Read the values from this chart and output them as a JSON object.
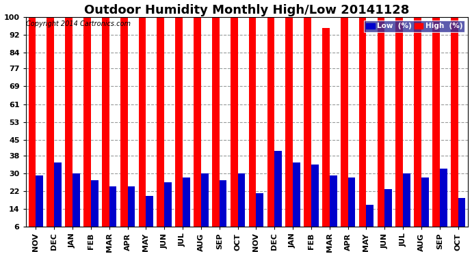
{
  "title": "Outdoor Humidity Monthly High/Low 20141128",
  "copyright": "Copyright 2014 Cartronics.com",
  "categories": [
    "NOV",
    "DEC",
    "JAN",
    "FEB",
    "MAR",
    "APR",
    "MAY",
    "JUN",
    "JUL",
    "AUG",
    "SEP",
    "OCT",
    "NOV",
    "DEC",
    "JAN",
    "FEB",
    "MAR",
    "APR",
    "MAY",
    "JUN",
    "JUL",
    "AUG",
    "SEP",
    "OCT"
  ],
  "high_values": [
    100,
    100,
    100,
    100,
    100,
    100,
    100,
    100,
    100,
    100,
    100,
    100,
    100,
    100,
    100,
    100,
    95,
    100,
    100,
    100,
    100,
    100,
    100,
    100
  ],
  "low_values": [
    29,
    35,
    30,
    27,
    24,
    24,
    20,
    26,
    28,
    30,
    27,
    30,
    21,
    40,
    35,
    34,
    29,
    28,
    16,
    23,
    30,
    28,
    32,
    19
  ],
  "high_color": "#ff0000",
  "low_color": "#0000cc",
  "bg_color": "#ffffff",
  "plot_bg_color": "#ffffff",
  "grid_color": "#999999",
  "yticks": [
    6,
    14,
    22,
    30,
    38,
    45,
    53,
    61,
    69,
    77,
    84,
    92,
    100
  ],
  "ylim_min": 6,
  "ylim_max": 100,
  "title_fontsize": 13,
  "tick_fontsize": 8,
  "legend_label_low": "Low  (%)",
  "legend_label_high": "High  (%)"
}
